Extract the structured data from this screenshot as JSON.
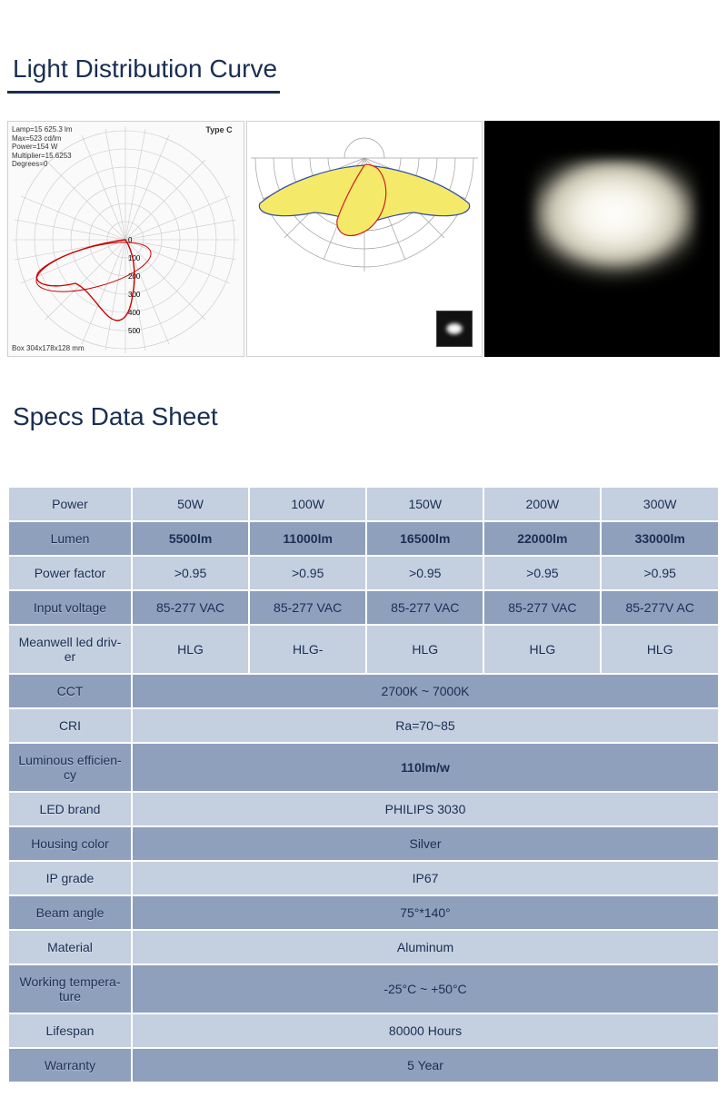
{
  "section1": {
    "title": "Light Distribution Curve"
  },
  "chart1": {
    "type": "polar",
    "info_lines": [
      "Lamp=15 625.3 lm",
      "Max=523 cd/lm",
      "Power=154 W",
      "Multiplier=15.6253",
      "Degrees=0"
    ],
    "type_label": "Type C",
    "bottom_label": "Box 304x178x128 mm",
    "grid_color": "#c8c8c8",
    "curve_color": "#cc0000",
    "radial_ticks": [
      "0",
      "100",
      "200",
      "300",
      "400",
      "500"
    ],
    "background": "#fafafa"
  },
  "chart2": {
    "type": "polar",
    "grid_color": "#a0a0a0",
    "fill_color": "#f5e96a",
    "outline_blue": "#3050a0",
    "outline_red": "#cc2020",
    "background": "#ffffff"
  },
  "chart3": {
    "type": "photo",
    "background": "#000000",
    "glow_color": "#f8f5e8"
  },
  "section2": {
    "title": "Specs Data Sheet"
  },
  "table": {
    "header_bg_dark": "#8fa0bd",
    "header_bg_light": "#c4cfe0",
    "text_color": "#1a2e52",
    "rows": [
      {
        "label": "Power",
        "style": "light",
        "cells": [
          "50W",
          "100W",
          "150W",
          "200W",
          "300W"
        ],
        "cell_style": "light"
      },
      {
        "label": "Lumen",
        "style": "dark",
        "cells": [
          "5500lm",
          "11000lm",
          "16500lm",
          "22000lm",
          "33000lm"
        ],
        "cell_style": "dark",
        "bold": true
      },
      {
        "label": "Power factor",
        "style": "light",
        "cells": [
          ">0.95",
          ">0.95",
          ">0.95",
          ">0.95",
          ">0.95"
        ],
        "cell_style": "light"
      },
      {
        "label": "Input voltage",
        "style": "dark",
        "cells": [
          "85-277 VAC",
          "85-277 VAC",
          "85-277 VAC",
          "85-277 VAC",
          "85-277V AC"
        ],
        "cell_style": "dark"
      },
      {
        "label": "Meanwell led driv-\ner",
        "style": "light",
        "cells": [
          "HLG",
          "HLG-",
          "HLG",
          "HLG",
          "HLG"
        ],
        "cell_style": "light"
      }
    ],
    "merged_rows": [
      {
        "label": "CCT",
        "value": "2700K ~ 7000K",
        "style": "dark",
        "val_style": "dark"
      },
      {
        "label": "CRI",
        "value": "Ra=70~85",
        "style": "light",
        "val_style": "light"
      },
      {
        "label": "Luminous efficien-\ncy",
        "value": "110lm/w",
        "style": "dark",
        "val_style": "dark",
        "bold": true
      },
      {
        "label": "LED  brand",
        "value": "PHILIPS 3030",
        "style": "light",
        "val_style": "light"
      },
      {
        "label": "Housing color",
        "value": "Silver",
        "style": "dark",
        "val_style": "dark"
      },
      {
        "label": "IP grade",
        "value": "IP67",
        "style": "light",
        "val_style": "light"
      },
      {
        "label": "Beam angle",
        "value": "75°*140°",
        "style": "dark",
        "val_style": "dark"
      },
      {
        "label": "Material",
        "value": "Aluminum",
        "style": "light",
        "val_style": "light"
      },
      {
        "label": "Working tempera-\nture",
        "value": "-25°C ~ +50°C",
        "style": "dark",
        "val_style": "dark"
      },
      {
        "label": "Lifespan",
        "value": "80000 Hours",
        "style": "light",
        "val_style": "light"
      },
      {
        "label": "Warranty",
        "value": "5 Year",
        "style": "dark",
        "val_style": "dark"
      }
    ]
  }
}
